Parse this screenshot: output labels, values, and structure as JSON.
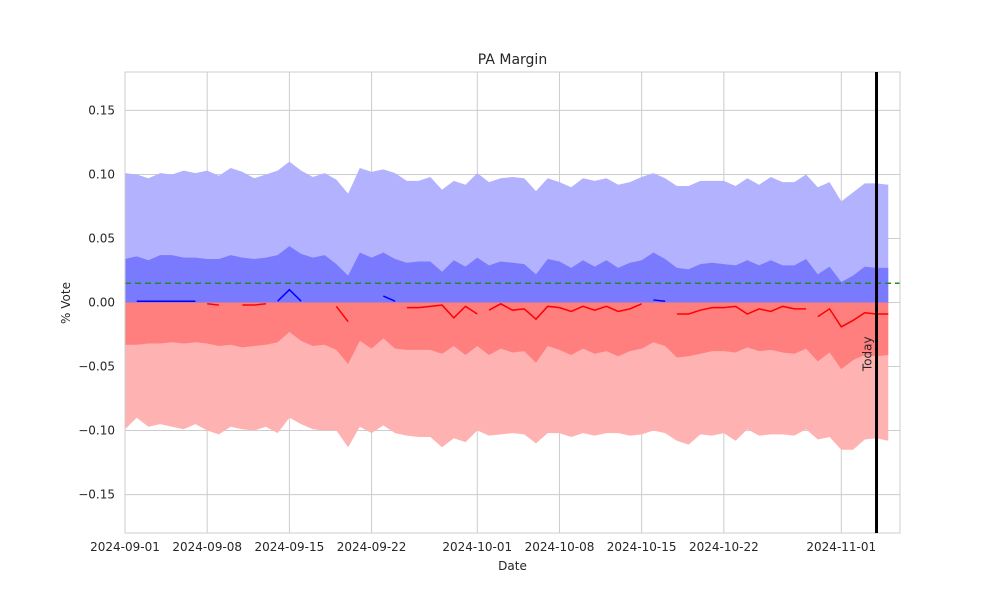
{
  "chart_data": {
    "type": "area",
    "title": "PA Margin",
    "xlabel": "Date",
    "ylabel": "% Vote",
    "x_start": "2024-09-01",
    "xlim": [
      "2024-09-01",
      "2024-11-06"
    ],
    "ylim": [
      -0.18,
      0.18
    ],
    "x_ticks": [
      "2024-09-01",
      "2024-09-08",
      "2024-09-15",
      "2024-09-22",
      "2024-10-01",
      "2024-10-08",
      "2024-10-15",
      "2024-10-22",
      "2024-11-01"
    ],
    "y_ticks": [
      -0.15,
      -0.1,
      -0.05,
      0.0,
      0.05,
      0.1,
      0.15
    ],
    "y_tick_labels": [
      "−0.15",
      "−0.10",
      "−0.05",
      "0.00",
      "0.05",
      "0.10",
      "0.15"
    ],
    "grid": true,
    "reference_line": {
      "value": 0.015,
      "style": "dashed",
      "color": "#228B22"
    },
    "today_marker": {
      "date": "2024-11-04",
      "label": "Today",
      "color": "#000000"
    },
    "colors": {
      "dem_outer": "#b2b2ff",
      "dem_inner": "#7a7aff",
      "rep_outer": "#ffb2b2",
      "rep_inner": "#ff7f7f",
      "dem_line": "#0000ff",
      "rep_line": "#ff0000"
    },
    "band_upper_outer": [
      0.101,
      0.1,
      0.097,
      0.101,
      0.1,
      0.103,
      0.101,
      0.103,
      0.099,
      0.105,
      0.102,
      0.097,
      0.1,
      0.103,
      0.11,
      0.103,
      0.098,
      0.101,
      0.096,
      0.085,
      0.105,
      0.102,
      0.104,
      0.101,
      0.095,
      0.095,
      0.098,
      0.088,
      0.095,
      0.092,
      0.101,
      0.094,
      0.097,
      0.098,
      0.097,
      0.087,
      0.097,
      0.094,
      0.09,
      0.097,
      0.095,
      0.097,
      0.092,
      0.094,
      0.098,
      0.101,
      0.097,
      0.091,
      0.091,
      0.095,
      0.095,
      0.095,
      0.091,
      0.097,
      0.092,
      0.098,
      0.094,
      0.094,
      0.1,
      0.09,
      0.094,
      0.079,
      0.086,
      0.093,
      0.093,
      0.092
    ],
    "band_upper_inner": [
      0.034,
      0.036,
      0.033,
      0.037,
      0.037,
      0.035,
      0.035,
      0.034,
      0.034,
      0.037,
      0.035,
      0.034,
      0.035,
      0.037,
      0.044,
      0.038,
      0.035,
      0.037,
      0.03,
      0.021,
      0.039,
      0.035,
      0.039,
      0.034,
      0.031,
      0.032,
      0.032,
      0.024,
      0.033,
      0.028,
      0.035,
      0.029,
      0.032,
      0.031,
      0.03,
      0.022,
      0.034,
      0.032,
      0.027,
      0.033,
      0.028,
      0.033,
      0.027,
      0.031,
      0.033,
      0.039,
      0.034,
      0.027,
      0.026,
      0.03,
      0.031,
      0.03,
      0.029,
      0.033,
      0.029,
      0.033,
      0.029,
      0.029,
      0.034,
      0.022,
      0.028,
      0.016,
      0.021,
      0.028,
      0.027,
      0.027
    ],
    "band_lower_inner": [
      -0.033,
      -0.033,
      -0.032,
      -0.032,
      -0.031,
      -0.032,
      -0.031,
      -0.032,
      -0.034,
      -0.033,
      -0.035,
      -0.034,
      -0.033,
      -0.031,
      -0.023,
      -0.03,
      -0.034,
      -0.033,
      -0.037,
      -0.048,
      -0.03,
      -0.036,
      -0.028,
      -0.036,
      -0.037,
      -0.037,
      -0.037,
      -0.04,
      -0.034,
      -0.041,
      -0.034,
      -0.041,
      -0.036,
      -0.039,
      -0.038,
      -0.047,
      -0.034,
      -0.037,
      -0.041,
      -0.036,
      -0.04,
      -0.038,
      -0.042,
      -0.038,
      -0.036,
      -0.031,
      -0.034,
      -0.043,
      -0.042,
      -0.04,
      -0.038,
      -0.038,
      -0.039,
      -0.035,
      -0.038,
      -0.037,
      -0.039,
      -0.04,
      -0.036,
      -0.046,
      -0.039,
      -0.052,
      -0.045,
      -0.041,
      -0.042,
      -0.041
    ],
    "band_lower_outer": [
      -0.099,
      -0.09,
      -0.097,
      -0.095,
      -0.097,
      -0.099,
      -0.095,
      -0.1,
      -0.103,
      -0.097,
      -0.099,
      -0.1,
      -0.097,
      -0.102,
      -0.09,
      -0.095,
      -0.099,
      -0.1,
      -0.1,
      -0.113,
      -0.097,
      -0.102,
      -0.096,
      -0.102,
      -0.104,
      -0.105,
      -0.105,
      -0.113,
      -0.106,
      -0.109,
      -0.1,
      -0.104,
      -0.103,
      -0.102,
      -0.103,
      -0.11,
      -0.102,
      -0.102,
      -0.105,
      -0.102,
      -0.104,
      -0.102,
      -0.102,
      -0.104,
      -0.103,
      -0.1,
      -0.102,
      -0.108,
      -0.111,
      -0.103,
      -0.104,
      -0.102,
      -0.108,
      -0.099,
      -0.104,
      -0.103,
      -0.103,
      -0.104,
      -0.099,
      -0.107,
      -0.105,
      -0.115,
      -0.115,
      -0.107,
      -0.106,
      -0.108
    ],
    "margin_segments": [
      {
        "party": "dem",
        "start": "2024-09-02",
        "values": [
          0.001,
          0.001,
          0.001,
          0.001,
          0.001,
          0.001
        ]
      },
      {
        "party": "rep",
        "start": "2024-09-08",
        "values": [
          -0.001,
          -0.002
        ]
      },
      {
        "party": "rep",
        "start": "2024-09-11",
        "values": [
          -0.002,
          -0.002,
          -0.001
        ]
      },
      {
        "party": "dem",
        "start": "2024-09-14",
        "values": [
          0.001,
          0.01,
          0.001
        ]
      },
      {
        "party": "rep",
        "start": "2024-09-19",
        "values": [
          -0.003,
          -0.015
        ]
      },
      {
        "party": "dem",
        "start": "2024-09-23",
        "values": [
          0.005,
          0.001
        ]
      },
      {
        "party": "rep",
        "start": "2024-09-25",
        "values": [
          -0.004,
          -0.004,
          -0.003,
          -0.002,
          -0.012,
          -0.003,
          -0.009
        ]
      },
      {
        "party": "rep",
        "start": "2024-10-02",
        "values": [
          -0.006,
          -0.001,
          -0.006,
          -0.005,
          -0.013,
          -0.003,
          -0.004,
          -0.007,
          -0.003,
          -0.006,
          -0.003,
          -0.007,
          -0.005,
          -0.001
        ]
      },
      {
        "party": "dem",
        "start": "2024-10-16",
        "values": [
          0.002,
          0.001
        ]
      },
      {
        "party": "rep",
        "start": "2024-10-18",
        "values": [
          -0.009,
          -0.009,
          -0.006,
          -0.004,
          -0.004,
          -0.003,
          -0.009,
          -0.005,
          -0.007,
          -0.003,
          -0.005,
          -0.005
        ]
      },
      {
        "party": "rep",
        "start": "2024-10-30",
        "values": [
          -0.011,
          -0.005,
          -0.019,
          -0.014,
          -0.008,
          -0.009,
          -0.009
        ]
      }
    ]
  }
}
